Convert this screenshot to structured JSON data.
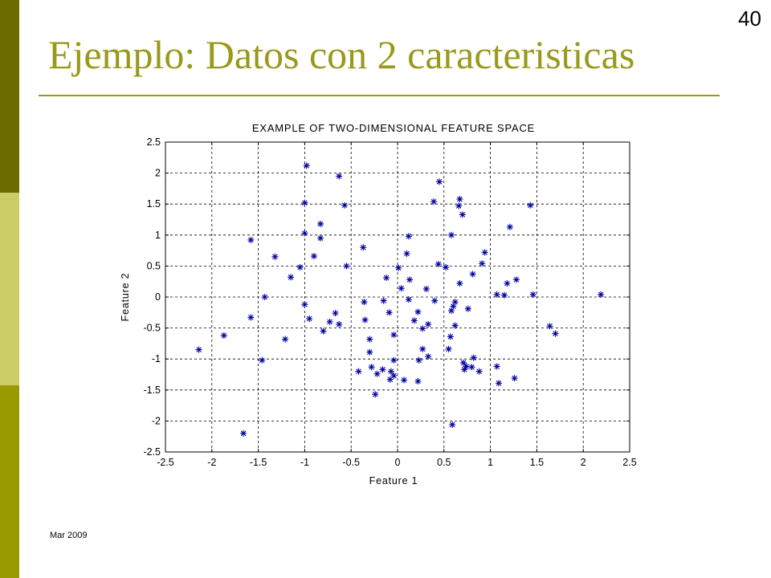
{
  "slide": {
    "title": "Ejemplo: Datos con 2 caracteristicas",
    "page_number": "40",
    "footer_date": "Mar 2009"
  },
  "colors": {
    "accent": "#99991a",
    "bar_dark": "#6b6b00",
    "bar_light": "#cccc66",
    "bar_mid": "#999900",
    "marker": "#0000a0"
  },
  "chart_data": {
    "type": "scatter",
    "title": "EXAMPLE OF TWO-DIMENSIONAL FEATURE SPACE",
    "xlabel": "Feature 1",
    "ylabel": "Feature 2",
    "xlim": [
      -2.5,
      2.5
    ],
    "ylim": [
      -2.5,
      2.5
    ],
    "xticks": [
      "-2.5",
      "-2",
      "-1.5",
      "-1",
      "-0.5",
      "0",
      "0.5",
      "1",
      "1.5",
      "2",
      "2.5"
    ],
    "yticks": [
      "2.5",
      "2",
      "1.5",
      "1",
      "0.5",
      "0",
      "-0.5",
      "-1",
      "-1.5",
      "-2",
      "-2.5"
    ],
    "grid": true,
    "marker": "*",
    "points": [
      [
        -0.98,
        2.12
      ],
      [
        -0.63,
        1.95
      ],
      [
        0.45,
        1.86
      ],
      [
        0.67,
        1.58
      ],
      [
        0.39,
        1.54
      ],
      [
        0.66,
        1.47
      ],
      [
        -0.57,
        1.48
      ],
      [
        -1.0,
        1.52
      ],
      [
        0.7,
        1.33
      ],
      [
        1.43,
        1.48
      ],
      [
        -0.83,
        1.18
      ],
      [
        1.21,
        1.13
      ],
      [
        -1.0,
        1.03
      ],
      [
        -0.83,
        0.95
      ],
      [
        0.12,
        0.98
      ],
      [
        0.58,
        1.0
      ],
      [
        -1.58,
        0.92
      ],
      [
        -0.37,
        0.8
      ],
      [
        0.1,
        0.7
      ],
      [
        0.94,
        0.72
      ],
      [
        -1.32,
        0.65
      ],
      [
        -0.9,
        0.66
      ],
      [
        0.44,
        0.53
      ],
      [
        0.91,
        0.54
      ],
      [
        -1.05,
        0.48
      ],
      [
        -0.55,
        0.5
      ],
      [
        0.01,
        0.47
      ],
      [
        0.52,
        0.48
      ],
      [
        -1.15,
        0.32
      ],
      [
        -0.12,
        0.31
      ],
      [
        0.13,
        0.28
      ],
      [
        0.81,
        0.37
      ],
      [
        1.18,
        0.22
      ],
      [
        1.28,
        0.28
      ],
      [
        0.67,
        0.22
      ],
      [
        0.04,
        0.14
      ],
      [
        0.31,
        0.13
      ],
      [
        1.07,
        0.04
      ],
      [
        1.15,
        0.03
      ],
      [
        1.46,
        0.04
      ],
      [
        2.19,
        0.04
      ],
      [
        -1.43,
        0.0
      ],
      [
        0.12,
        -0.04
      ],
      [
        0.4,
        -0.06
      ],
      [
        -0.36,
        -0.08
      ],
      [
        -0.15,
        -0.06
      ],
      [
        0.62,
        -0.08
      ],
      [
        -1.0,
        -0.12
      ],
      [
        0.6,
        -0.15
      ],
      [
        0.76,
        -0.19
      ],
      [
        -0.67,
        -0.26
      ],
      [
        0.22,
        -0.24
      ],
      [
        0.58,
        -0.22
      ],
      [
        -0.09,
        -0.25
      ],
      [
        -1.58,
        -0.33
      ],
      [
        -0.95,
        -0.35
      ],
      [
        -0.73,
        -0.4
      ],
      [
        -0.35,
        -0.37
      ],
      [
        0.18,
        -0.38
      ],
      [
        0.33,
        -0.44
      ],
      [
        -0.63,
        -0.44
      ],
      [
        0.27,
        -0.51
      ],
      [
        0.62,
        -0.46
      ],
      [
        1.64,
        -0.47
      ],
      [
        -0.8,
        -0.55
      ],
      [
        -0.04,
        -0.61
      ],
      [
        1.7,
        -0.59
      ],
      [
        -1.87,
        -0.62
      ],
      [
        0.57,
        -0.64
      ],
      [
        -1.21,
        -0.68
      ],
      [
        -0.3,
        -0.68
      ],
      [
        0.27,
        -0.84
      ],
      [
        0.55,
        -0.84
      ],
      [
        -2.14,
        -0.85
      ],
      [
        -0.3,
        -0.89
      ],
      [
        0.33,
        -0.96
      ],
      [
        0.82,
        -0.98
      ],
      [
        -1.46,
        -1.02
      ],
      [
        0.23,
        -1.02
      ],
      [
        -0.04,
        -1.02
      ],
      [
        0.71,
        -1.06
      ],
      [
        1.07,
        -1.12
      ],
      [
        -0.28,
        -1.13
      ],
      [
        0.74,
        -1.12
      ],
      [
        0.8,
        -1.13
      ],
      [
        -0.16,
        -1.17
      ],
      [
        0.72,
        -1.17
      ],
      [
        0.88,
        -1.2
      ],
      [
        -0.07,
        -1.2
      ],
      [
        -0.42,
        -1.2
      ],
      [
        -0.22,
        -1.24
      ],
      [
        -0.04,
        -1.27
      ],
      [
        1.26,
        -1.31
      ],
      [
        -0.08,
        -1.33
      ],
      [
        0.07,
        -1.34
      ],
      [
        0.22,
        -1.36
      ],
      [
        1.09,
        -1.39
      ],
      [
        -0.24,
        -1.57
      ],
      [
        0.59,
        -2.06
      ],
      [
        -1.66,
        -2.2
      ]
    ]
  }
}
